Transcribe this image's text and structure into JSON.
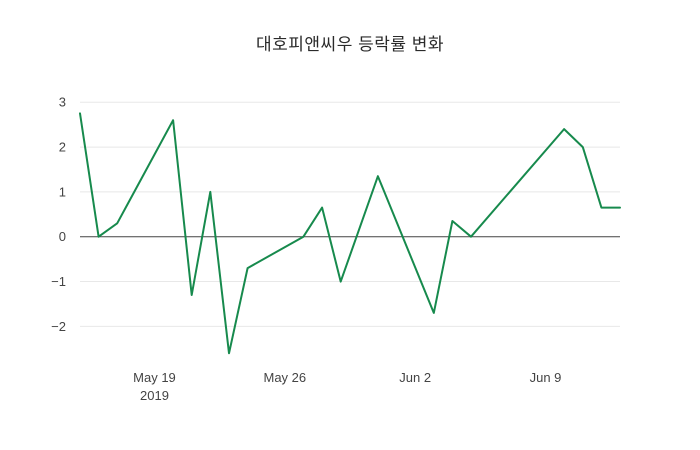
{
  "chart": {
    "title": "대호피앤씨우 등락률 변화"
  },
  "colors": {
    "line": "#178a4d",
    "grid": "#e8e8e8",
    "zeroline": "#444444",
    "tick_text": "#444444",
    "title_text": "#2a2a2a",
    "background": "#ffffff"
  },
  "chart_data": {
    "type": "line",
    "title": "대호피앤씨우 등락률 변화",
    "xlabel": "",
    "ylabel": "",
    "grid": true,
    "zeroline": true,
    "legend": "none",
    "x_range": [
      "2019-05-15",
      "2019-06-13"
    ],
    "ylim": [
      -2.75,
      3.05
    ],
    "series": [
      {
        "name": "등락률",
        "color": "#178a4d",
        "points": [
          {
            "date": "2019-05-15",
            "value": 2.75
          },
          {
            "date": "2019-05-16",
            "value": 0.0
          },
          {
            "date": "2019-05-17",
            "value": 0.3
          },
          {
            "date": "2019-05-20",
            "value": 2.6
          },
          {
            "date": "2019-05-21",
            "value": -1.3
          },
          {
            "date": "2019-05-22",
            "value": 1.0
          },
          {
            "date": "2019-05-23",
            "value": -2.6
          },
          {
            "date": "2019-05-24",
            "value": -0.7
          },
          {
            "date": "2019-05-27",
            "value": 0.0
          },
          {
            "date": "2019-05-28",
            "value": 0.65
          },
          {
            "date": "2019-05-29",
            "value": -1.0
          },
          {
            "date": "2019-05-31",
            "value": 1.35
          },
          {
            "date": "2019-06-03",
            "value": -1.7
          },
          {
            "date": "2019-06-04",
            "value": 0.35
          },
          {
            "date": "2019-06-05",
            "value": 0.0
          },
          {
            "date": "2019-06-10",
            "value": 2.4
          },
          {
            "date": "2019-06-11",
            "value": 2.0
          },
          {
            "date": "2019-06-12",
            "value": 0.65
          },
          {
            "date": "2019-06-13",
            "value": 0.65
          }
        ]
      }
    ],
    "x_ticks": [
      {
        "date": "2019-05-19",
        "label": "May 19",
        "sublabel": "2019"
      },
      {
        "date": "2019-05-26",
        "label": "May 26",
        "sublabel": ""
      },
      {
        "date": "2019-06-02",
        "label": "Jun 2",
        "sublabel": ""
      },
      {
        "date": "2019-06-09",
        "label": "Jun 9",
        "sublabel": ""
      }
    ],
    "y_ticks": [
      {
        "value": 3,
        "label": "3"
      },
      {
        "value": 2,
        "label": "2"
      },
      {
        "value": 1,
        "label": "1"
      },
      {
        "value": 0,
        "label": "0"
      },
      {
        "value": -1,
        "label": "−1"
      },
      {
        "value": -2,
        "label": "−2"
      }
    ]
  }
}
